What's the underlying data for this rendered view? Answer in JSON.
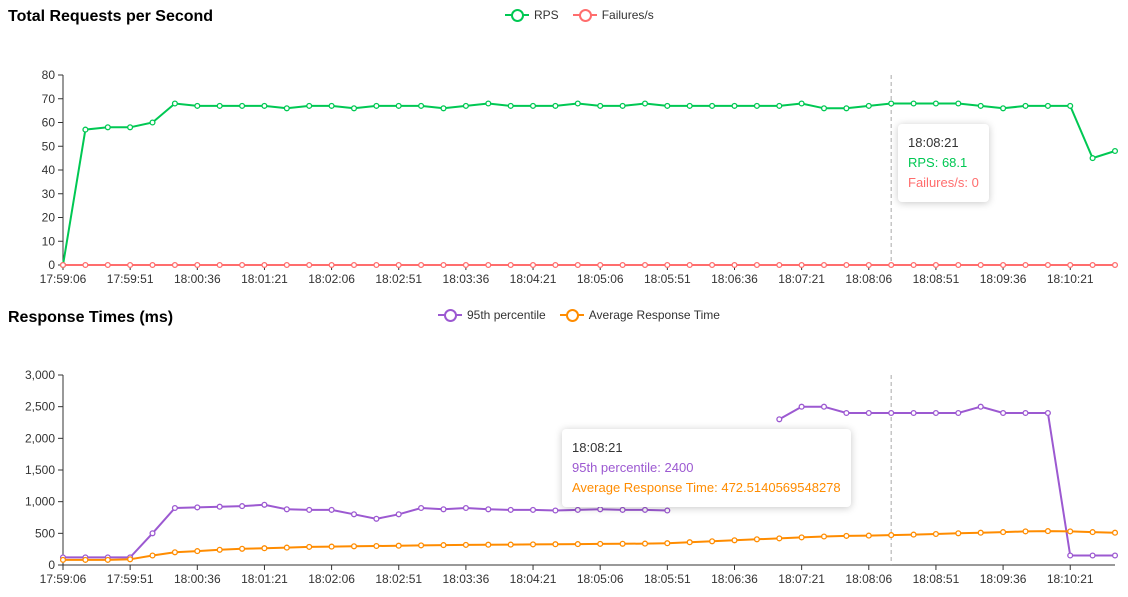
{
  "colors": {
    "rps": "#00c853",
    "failures": "#ff6d6d",
    "p95": "#9c59d1",
    "avg": "#ff8c00"
  },
  "x_tick_labels": [
    "17:59:06",
    "17:59:51",
    "18:00:36",
    "18:01:21",
    "18:02:06",
    "18:02:51",
    "18:03:36",
    "18:04:21",
    "18:05:06",
    "18:05:51",
    "18:06:36",
    "18:07:21",
    "18:08:06",
    "18:08:51",
    "18:09:36",
    "18:10:21"
  ],
  "chart_data": [
    {
      "type": "line",
      "title": "Total Requests per Second",
      "legend_placement": "top-center",
      "ylim": [
        0,
        80
      ],
      "y_ticks": [
        "0",
        "10",
        "20",
        "30",
        "40",
        "50",
        "60",
        "70",
        "80"
      ],
      "x": [
        "17:59:06",
        "17:59:21",
        "17:59:36",
        "17:59:51",
        "18:00:06",
        "18:00:21",
        "18:00:36",
        "18:00:51",
        "18:01:06",
        "18:01:21",
        "18:01:36",
        "18:01:51",
        "18:02:06",
        "18:02:21",
        "18:02:36",
        "18:02:51",
        "18:03:06",
        "18:03:21",
        "18:03:36",
        "18:03:51",
        "18:04:06",
        "18:04:21",
        "18:04:36",
        "18:04:51",
        "18:05:06",
        "18:05:21",
        "18:05:36",
        "18:05:51",
        "18:06:06",
        "18:06:21",
        "18:06:36",
        "18:06:51",
        "18:07:06",
        "18:07:21",
        "18:07:36",
        "18:07:51",
        "18:08:06",
        "18:08:21",
        "18:08:36",
        "18:08:51",
        "18:09:06",
        "18:09:21",
        "18:09:36",
        "18:09:51",
        "18:10:06",
        "18:10:21",
        "18:10:36",
        "18:10:51"
      ],
      "series": [
        {
          "name": "RPS",
          "color": "#00c853",
          "values": [
            0,
            57,
            58,
            58,
            60,
            68,
            67,
            67,
            67,
            67,
            66,
            67,
            67,
            66,
            67,
            67,
            67,
            66,
            67,
            68,
            67,
            67,
            67,
            68,
            67,
            67,
            68,
            67,
            67,
            67,
            67,
            67,
            67,
            68,
            66,
            66,
            67,
            68,
            68,
            68,
            68,
            67,
            66,
            67,
            67,
            67,
            45,
            48
          ]
        },
        {
          "name": "Failures/s",
          "color": "#ff6d6d",
          "values": [
            0,
            0,
            0,
            0,
            0,
            0,
            0,
            0,
            0,
            0,
            0,
            0,
            0,
            0,
            0,
            0,
            0,
            0,
            0,
            0,
            0,
            0,
            0,
            0,
            0,
            0,
            0,
            0,
            0,
            0,
            0,
            0,
            0,
            0,
            0,
            0,
            0,
            0,
            0,
            0,
            0,
            0,
            0,
            0,
            0,
            0,
            0,
            0
          ]
        }
      ],
      "tooltip": {
        "time": "18:08:21",
        "lines": [
          "RPS: 68.1",
          "Failures/s: 0"
        ]
      }
    },
    {
      "type": "line",
      "title": "Response Times (ms)",
      "legend_placement": "top-center",
      "ylim": [
        0,
        3000
      ],
      "y_ticks": [
        "0",
        "500",
        "1,000",
        "1,500",
        "2,000",
        "2,500",
        "3,000"
      ],
      "x": [
        "17:59:06",
        "17:59:21",
        "17:59:36",
        "17:59:51",
        "18:00:06",
        "18:00:21",
        "18:00:36",
        "18:00:51",
        "18:01:06",
        "18:01:21",
        "18:01:36",
        "18:01:51",
        "18:02:06",
        "18:02:21",
        "18:02:36",
        "18:02:51",
        "18:03:06",
        "18:03:21",
        "18:03:36",
        "18:03:51",
        "18:04:06",
        "18:04:21",
        "18:04:36",
        "18:04:51",
        "18:05:06",
        "18:05:21",
        "18:05:36",
        "18:05:51",
        "18:06:06",
        "18:06:21",
        "18:06:36",
        "18:06:51",
        "18:07:06",
        "18:07:21",
        "18:07:36",
        "18:07:51",
        "18:08:06",
        "18:08:21",
        "18:08:36",
        "18:08:51",
        "18:09:06",
        "18:09:21",
        "18:09:36",
        "18:09:51",
        "18:10:06",
        "18:10:21",
        "18:10:36",
        "18:10:51"
      ],
      "series": [
        {
          "name": "95th percentile",
          "color": "#9c59d1",
          "values": [
            120,
            120,
            120,
            120,
            500,
            900,
            910,
            920,
            930,
            950,
            880,
            870,
            870,
            800,
            730,
            800,
            900,
            880,
            900,
            880,
            870,
            870,
            860,
            870,
            880,
            870,
            870,
            860,
            null,
            null,
            null,
            null,
            2300,
            2500,
            2500,
            2400,
            2400,
            2400,
            2400,
            2400,
            2400,
            2500,
            2400,
            2400,
            2400,
            150,
            150,
            150
          ]
        },
        {
          "name": "Average Response Time",
          "color": "#ff8c00",
          "values": [
            80,
            80,
            80,
            90,
            150,
            200,
            220,
            240,
            255,
            265,
            275,
            285,
            290,
            295,
            300,
            305,
            310,
            315,
            318,
            320,
            322,
            325,
            328,
            330,
            333,
            335,
            338,
            345,
            360,
            375,
            390,
            405,
            420,
            435,
            450,
            460,
            465,
            472,
            480,
            490,
            500,
            510,
            520,
            530,
            535,
            530,
            520,
            510
          ]
        }
      ],
      "tooltip": {
        "time": "18:08:21",
        "lines": [
          "95th percentile: 2400",
          "Average Response Time: 472.5140569548278"
        ]
      }
    }
  ]
}
